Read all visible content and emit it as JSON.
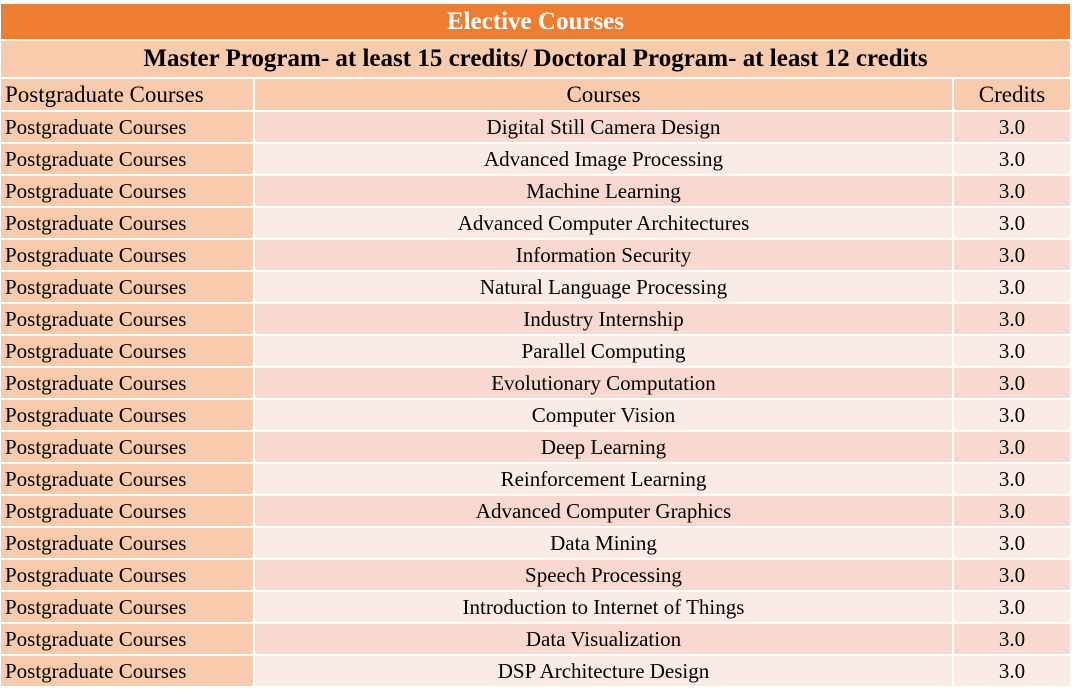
{
  "table": {
    "title": "Elective Courses",
    "requirement": "Master Program- at least 15 credits/ Doctoral Program- at least 12 credits",
    "headers": [
      "Postgraduate Courses",
      "Courses",
      "Credits"
    ],
    "rows": [
      {
        "category": "Postgraduate Courses",
        "course": "Digital Still Camera Design",
        "credits": "3.0"
      },
      {
        "category": "Postgraduate Courses",
        "course": "Advanced Image Processing",
        "credits": "3.0"
      },
      {
        "category": "Postgraduate Courses",
        "course": "Machine Learning",
        "credits": "3.0"
      },
      {
        "category": "Postgraduate Courses",
        "course": "Advanced Computer Architectures",
        "credits": "3.0"
      },
      {
        "category": "Postgraduate Courses",
        "course": "Information Security",
        "credits": "3.0"
      },
      {
        "category": "Postgraduate Courses",
        "course": "Natural Language Processing",
        "credits": "3.0"
      },
      {
        "category": "Postgraduate Courses",
        "course": "Industry Internship",
        "credits": "3.0"
      },
      {
        "category": "Postgraduate Courses",
        "course": "Parallel Computing",
        "credits": "3.0"
      },
      {
        "category": "Postgraduate Courses",
        "course": "Evolutionary Computation",
        "credits": "3.0"
      },
      {
        "category": "Postgraduate Courses",
        "course": "Computer Vision",
        "credits": "3.0"
      },
      {
        "category": "Postgraduate Courses",
        "course": "Deep Learning",
        "credits": "3.0"
      },
      {
        "category": "Postgraduate Courses",
        "course": "Reinforcement Learning",
        "credits": "3.0"
      },
      {
        "category": "Postgraduate Courses",
        "course": "Advanced Computer Graphics",
        "credits": "3.0"
      },
      {
        "category": "Postgraduate Courses",
        "course": "Data Mining",
        "credits": "3.0"
      },
      {
        "category": "Postgraduate Courses",
        "course": "Speech Processing",
        "credits": "3.0"
      },
      {
        "category": "Postgraduate Courses",
        "course": "Introduction to Internet of Things",
        "credits": "3.0"
      },
      {
        "category": "Postgraduate Courses",
        "course": "Data Visualization",
        "credits": "3.0"
      },
      {
        "category": "Postgraduate Courses",
        "course": "DSP Architecture Design",
        "credits": "3.0"
      }
    ]
  },
  "colors": {
    "title_bg": "#ee7d31",
    "header_bg": "#f8cbad",
    "row_odd_bg": "#f9d9cf",
    "row_even_bg": "#fbebe6"
  }
}
